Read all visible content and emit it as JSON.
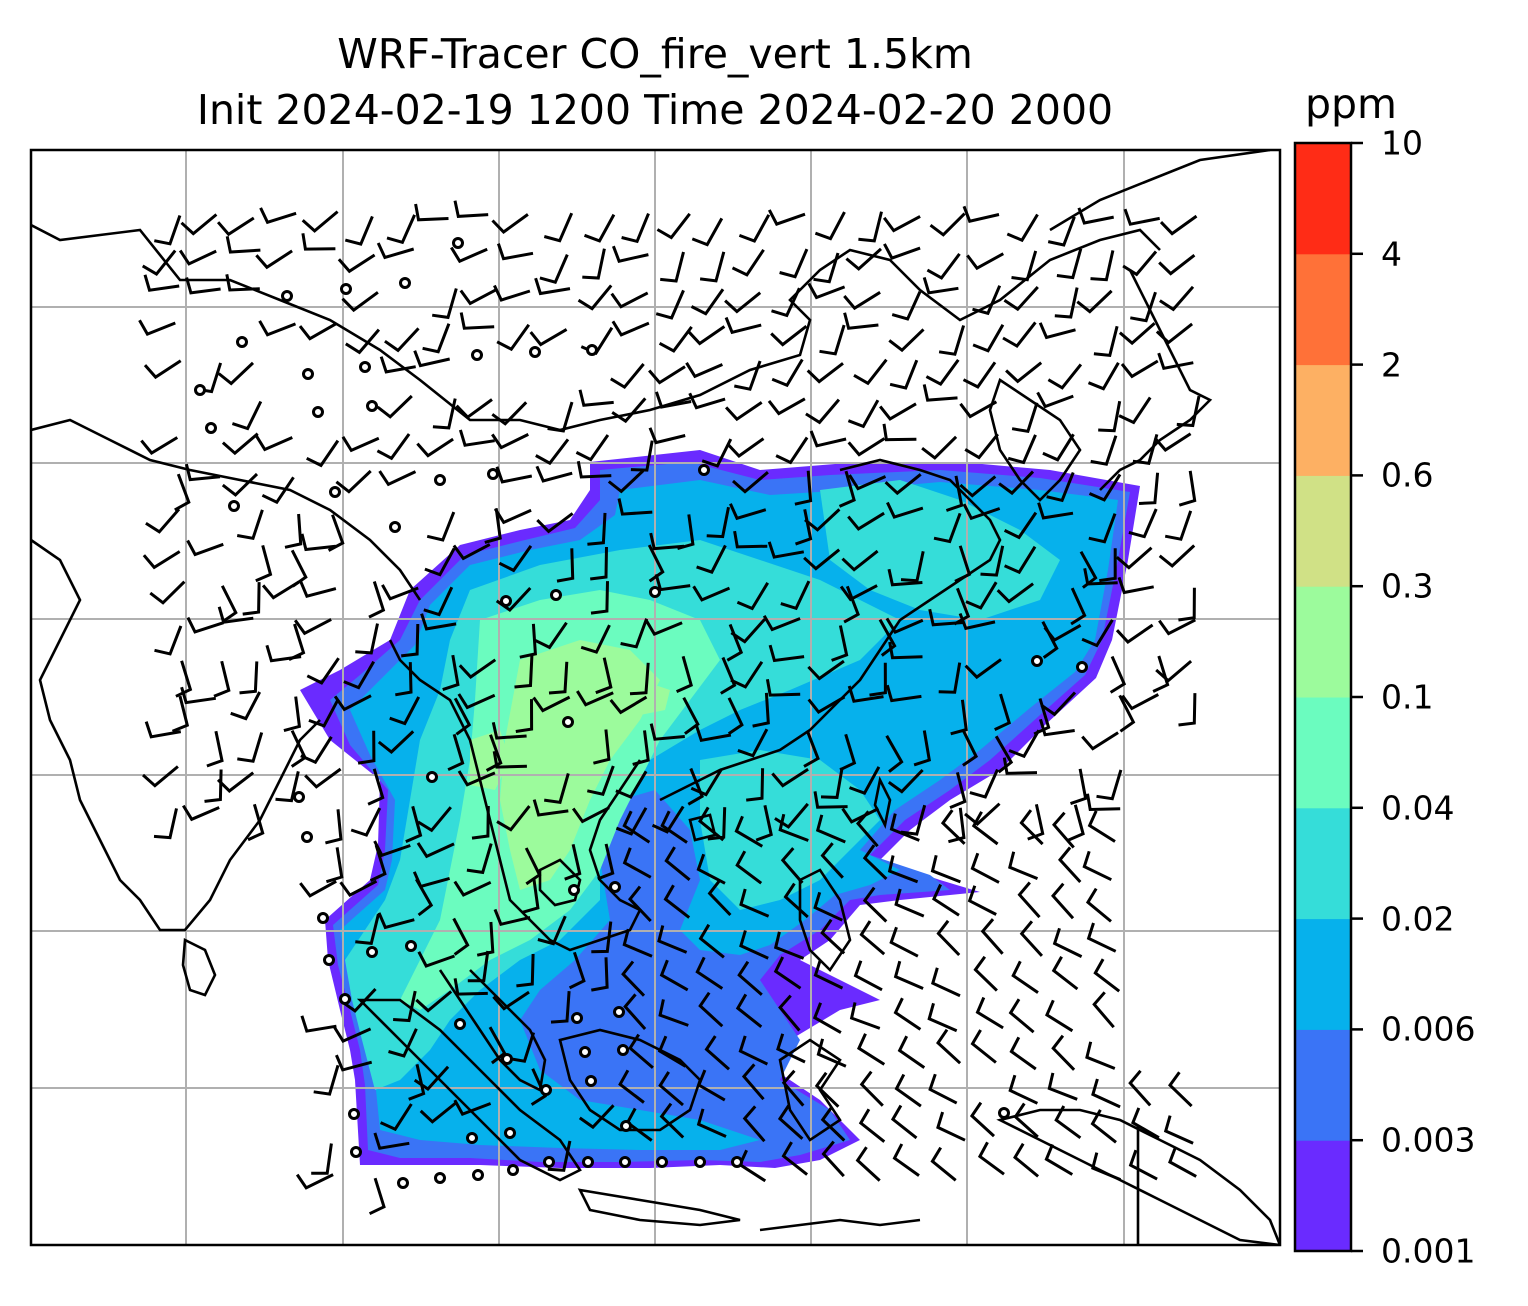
{
  "title": {
    "line1": "WRF-Tracer CO_fire_vert 1.5km",
    "line2": "Init 2024-02-19 1200 Time 2024-02-20 2000"
  },
  "colorbar": {
    "unit": "ppm",
    "ticks": [
      "0.001",
      "0.003",
      "0.006",
      "0.02",
      "0.04",
      "0.1",
      "0.3",
      "0.6",
      "2",
      "4",
      "10"
    ],
    "colors": [
      "#6a2bff",
      "#3a74f6",
      "#06b1ec",
      "#35ddd9",
      "#6bfcbf",
      "#9cfb9c",
      "#d0e186",
      "#fdb063",
      "#ff7138",
      "#ff2c16"
    ]
  },
  "map": {
    "variable": "CO_fire_vert",
    "level": "1.5km",
    "gridlines": true,
    "coastlines": true,
    "wind_barbs": true,
    "colors": {
      "coast": "#000000",
      "grid": "#b0b0b0",
      "frame": "#000000"
    }
  }
}
